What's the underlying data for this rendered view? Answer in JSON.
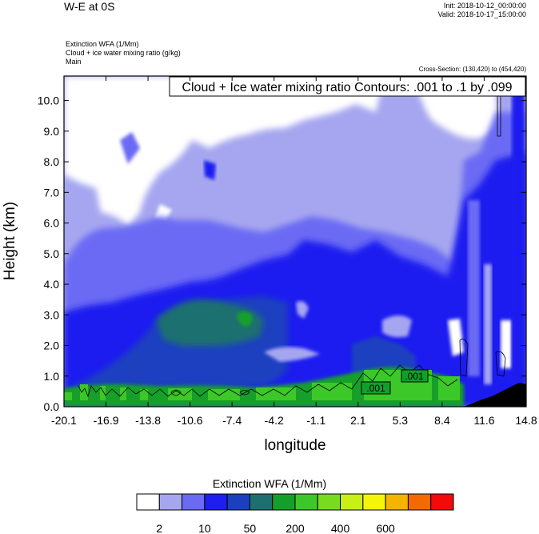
{
  "header": {
    "title": "W-E at 0S",
    "init": "Init: 2018-10-12_00:00:00",
    "valid": "Valid: 2018-10-17_15:00:00",
    "left_lines": [
      "Extinction WFA   (1/Mm)",
      "Cloud + ice water mixing ratio   (g/kg)",
      "Main"
    ],
    "cross_section": "Cross-Section: (130,420) to (454,420)"
  },
  "chart_data": {
    "type": "heatmap",
    "title": "Cloud + Ice water mixing ratio Contours: .001 to .1 by .099",
    "xlabel": "longitude",
    "ylabel": "Height (km)",
    "xlim": [
      -20.1,
      14.8
    ],
    "ylim": [
      0.0,
      10.8
    ],
    "xticks": [
      "-20.1",
      "-16.9",
      "-13.8",
      "-10.6",
      "-7.4",
      "-4.2",
      "-1.1",
      "2.1",
      "5.3",
      "8.4",
      "11.6",
      "14.8"
    ],
    "yticks": [
      "0.0",
      "1.0",
      "2.0",
      "3.0",
      "4.0",
      "5.0",
      "6.0",
      "7.0",
      "8.0",
      "9.0",
      "10.0"
    ],
    "contour_labels": [
      ".001",
      ".001"
    ],
    "colorbar": {
      "title": "Extinction WFA  (1/Mm)",
      "labels": [
        "2",
        "10",
        "50",
        "200",
        "400",
        "600"
      ],
      "colors": [
        "#ffffff",
        "#a6a6f0",
        "#6a6af5",
        "#1e1ef0",
        "#1a40c0",
        "#1e7070",
        "#12a02a",
        "#3cc828",
        "#78dc1e",
        "#c8f014",
        "#f5f50a",
        "#f5b400",
        "#f56a00",
        "#f50a0a"
      ]
    },
    "terrain_color": "#000000"
  }
}
